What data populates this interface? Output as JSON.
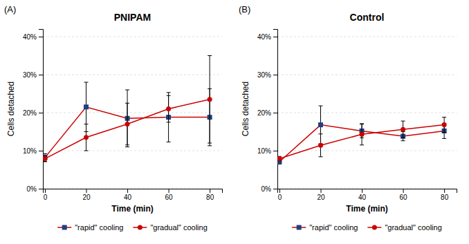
{
  "chart_data": [
    {
      "type": "line",
      "title": "PNIPAM",
      "annotations": [
        "(A)"
      ],
      "x_label": "Time (min)",
      "y_label": "Cells detached",
      "x": [
        0,
        20,
        40,
        60,
        80
      ],
      "color": "#cc0000",
      "series": [
        {
          "name": "\"rapid\" cooling",
          "color": "#1f4080",
          "marker": "square",
          "values": [
            0.082,
            0.215,
            0.185,
            0.188,
            0.188
          ],
          "errors": [
            0.01,
            0.065,
            0.075,
            0.065,
            0.075
          ]
        },
        {
          "name": "\"gradual\" cooling",
          "color": "#cc0000",
          "marker": "circle",
          "values": [
            0.079,
            0.135,
            0.17,
            0.21,
            0.235
          ],
          "errors": [
            0.008,
            0.035,
            0.055,
            0.035,
            0.115
          ]
        }
      ],
      "xlim": [
        -1,
        86
      ],
      "xticks": [
        0,
        20,
        40,
        60,
        80
      ],
      "ylim": [
        0.0,
        0.42
      ],
      "yticks": [
        {
          "value": 0.0,
          "label": "0%"
        },
        {
          "value": 0.1,
          "label": "10%"
        },
        {
          "value": 0.2,
          "label": "20%"
        },
        {
          "value": 0.3,
          "label": "30%"
        },
        {
          "value": 0.4,
          "label": "40%"
        }
      ],
      "grid": true,
      "legend": "bottom"
    },
    {
      "type": "line",
      "title": "Control",
      "annotations": [
        "(B)"
      ],
      "x_label": "Time (min)",
      "y_label": "Cells detached",
      "x": [
        0,
        20,
        40,
        60,
        80
      ],
      "color": "#cc0000",
      "series": [
        {
          "name": "\"rapid\" cooling",
          "color": "#1f4080",
          "marker": "square",
          "values": [
            0.071,
            0.168,
            0.152,
            0.138,
            0.152
          ],
          "errors": [
            0.006,
            0.05,
            0.018,
            0.012,
            0.02
          ]
        },
        {
          "name": "\"gradual\" cooling",
          "color": "#cc0000",
          "marker": "circle",
          "values": [
            0.079,
            0.114,
            0.143,
            0.156,
            0.168
          ],
          "errors": [
            0.006,
            0.03,
            0.028,
            0.022,
            0.02
          ]
        }
      ],
      "xlim": [
        -1,
        86
      ],
      "xticks": [
        0,
        20,
        40,
        60,
        80
      ],
      "ylim": [
        0.0,
        0.42
      ],
      "yticks": [
        {
          "value": 0.0,
          "label": "0%"
        },
        {
          "value": 0.1,
          "label": "10%"
        },
        {
          "value": 0.2,
          "label": "20%"
        },
        {
          "value": 0.3,
          "label": "30%"
        },
        {
          "value": 0.4,
          "label": "40%"
        }
      ],
      "grid": true,
      "legend": "bottom"
    }
  ]
}
